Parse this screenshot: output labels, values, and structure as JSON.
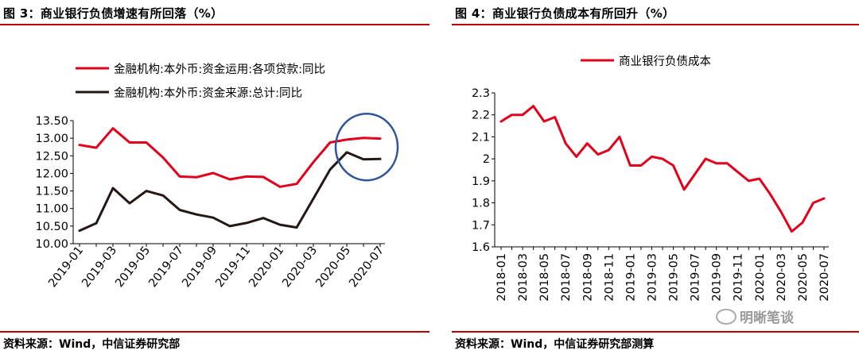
{
  "left": {
    "title": "图 3：商业银行负债增速有所回落（%）",
    "source": "资料来源：Wind，中信证券研究部",
    "chart_data": {
      "type": "line",
      "x": [
        "2019-01",
        "2019-02",
        "2019-03",
        "2019-04",
        "2019-05",
        "2019-06",
        "2019-07",
        "2019-08",
        "2019-09",
        "2019-10",
        "2019-11",
        "2019-12",
        "2020-01",
        "2020-02",
        "2020-03",
        "2020-04",
        "2020-05",
        "2020-06",
        "2020-07"
      ],
      "x_tick_labels": [
        "2019-01",
        "2019-03",
        "2019-05",
        "2019-07",
        "2019-09",
        "2019-11",
        "2020-01",
        "2020-03",
        "2020-05",
        "2020-07"
      ],
      "y_tick_labels": [
        "10.00",
        "10.50",
        "11.00",
        "11.50",
        "12.00",
        "12.50",
        "13.00",
        "13.50"
      ],
      "ylim": [
        10.0,
        13.5
      ],
      "legend_position": "top",
      "series": [
        {
          "name": "金融机构:本外币:资金运用:各项贷款:同比",
          "color": "#e3001b",
          "values": [
            12.81,
            12.73,
            13.28,
            12.88,
            12.88,
            12.45,
            11.91,
            11.89,
            12.01,
            11.83,
            11.91,
            11.9,
            11.62,
            11.7,
            12.32,
            12.88,
            12.96,
            13.01,
            12.99
          ]
        },
        {
          "name": "金融机构:本外币:资金来源:总计:同比",
          "color": "#231815",
          "values": [
            10.37,
            10.58,
            11.58,
            11.15,
            11.5,
            11.37,
            10.96,
            10.83,
            10.74,
            10.5,
            10.59,
            10.73,
            10.54,
            10.46,
            11.28,
            12.11,
            12.6,
            12.4,
            12.41
          ]
        }
      ],
      "annotation": {
        "shape": "ellipse",
        "color": "#2e5597",
        "around": [
          "2020-05",
          "2020-07"
        ]
      }
    }
  },
  "right": {
    "title": "图 4：商业银行负债成本有所回升（%）",
    "source": "资料来源：Wind，中信证券研究部测算",
    "chart_data": {
      "type": "line",
      "x": [
        "2018-01",
        "2018-02",
        "2018-03",
        "2018-04",
        "2018-05",
        "2018-06",
        "2018-07",
        "2018-08",
        "2018-09",
        "2018-10",
        "2018-11",
        "2018-12",
        "2019-01",
        "2019-02",
        "2019-03",
        "2019-04",
        "2019-05",
        "2019-06",
        "2019-07",
        "2019-08",
        "2019-09",
        "2019-10",
        "2019-11",
        "2019-12",
        "2020-01",
        "2020-02",
        "2020-03",
        "2020-04",
        "2020-05",
        "2020-06",
        "2020-07"
      ],
      "x_tick_labels": [
        "2018-01",
        "2018-03",
        "2018-05",
        "2018-07",
        "2018-09",
        "2018-11",
        "2019-01",
        "2019-03",
        "2019-05",
        "2019-07",
        "2019-09",
        "2019-11",
        "2020-01",
        "2020-03",
        "2020-05",
        "2020-07"
      ],
      "y_tick_labels": [
        "1.6",
        "1.7",
        "1.8",
        "1.9",
        "2",
        "2.1",
        "2.2",
        "2.3"
      ],
      "ylim": [
        1.6,
        2.3
      ],
      "legend_position": "top",
      "series": [
        {
          "name": "商业银行负债成本",
          "color": "#e3001b",
          "values": [
            2.17,
            2.2,
            2.2,
            2.24,
            2.17,
            2.19,
            2.07,
            2.01,
            2.07,
            2.02,
            2.04,
            2.1,
            1.97,
            1.97,
            2.01,
            2.0,
            1.97,
            1.86,
            1.93,
            2.0,
            1.98,
            1.98,
            1.94,
            1.9,
            1.91,
            1.84,
            1.76,
            1.67,
            1.71,
            1.8,
            1.82
          ]
        }
      ]
    }
  },
  "watermark": "明晰笔谈"
}
